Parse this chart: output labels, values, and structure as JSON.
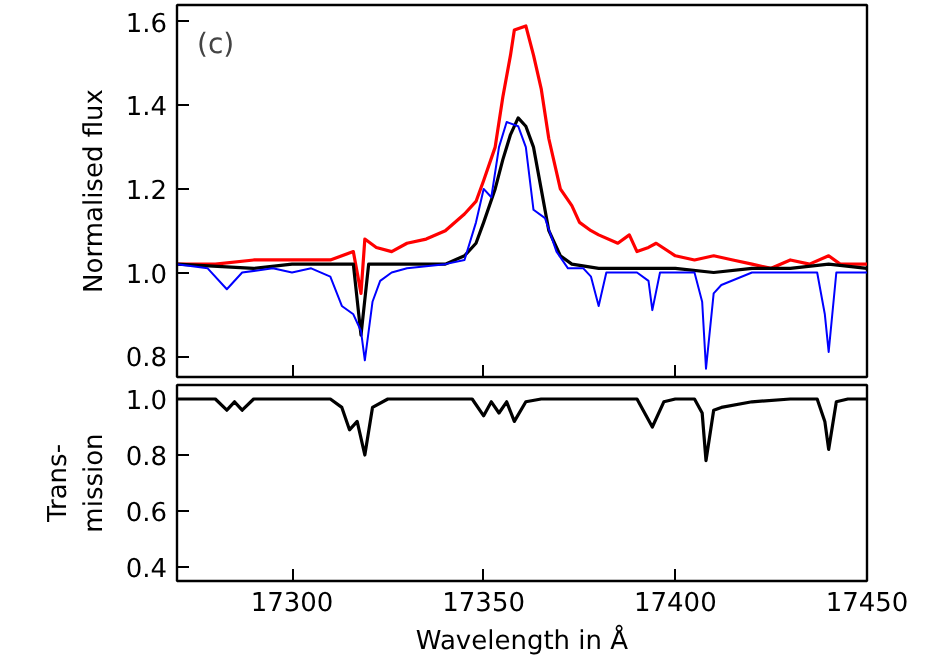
{
  "chart_data": [
    {
      "type": "line",
      "ylabel": "Normalised flux",
      "annotations": [
        "(c)"
      ],
      "xlim": [
        17270,
        17450
      ],
      "ylim": [
        0.75,
        1.64
      ],
      "yticks": [
        {
          "value": 0.8,
          "label": "0.8"
        },
        {
          "value": 1.0,
          "label": "1.0"
        },
        {
          "value": 1.2,
          "label": "1.2"
        },
        {
          "value": 1.4,
          "label": "1.4"
        },
        {
          "value": 1.6,
          "label": "1.6"
        }
      ],
      "tick_labels": "y",
      "grid": false,
      "series": [
        {
          "color": "#ff0000",
          "x": [
            17270,
            17280,
            17290,
            17300,
            17310,
            17316,
            17318,
            17319,
            17322,
            17326,
            17330,
            17335,
            17340,
            17345,
            17348,
            17350,
            17353,
            17355,
            17357,
            17358,
            17361,
            17363,
            17365,
            17367,
            17370,
            17373,
            17375,
            17378,
            17380,
            17385,
            17388,
            17390,
            17393,
            17395,
            17400,
            17405,
            17410,
            17415,
            17420,
            17425,
            17430,
            17435,
            17440,
            17443,
            17446,
            17450
          ],
          "values": [
            1.02,
            1.02,
            1.03,
            1.03,
            1.03,
            1.05,
            0.95,
            1.08,
            1.06,
            1.05,
            1.07,
            1.08,
            1.1,
            1.14,
            1.17,
            1.22,
            1.3,
            1.42,
            1.52,
            1.58,
            1.59,
            1.52,
            1.44,
            1.32,
            1.2,
            1.16,
            1.12,
            1.1,
            1.09,
            1.07,
            1.09,
            1.05,
            1.06,
            1.07,
            1.04,
            1.03,
            1.04,
            1.03,
            1.02,
            1.01,
            1.03,
            1.02,
            1.04,
            1.02,
            1.02,
            1.02
          ]
        },
        {
          "color": "#000000",
          "x": [
            17270,
            17290,
            17300,
            17310,
            17316,
            17318,
            17320,
            17325,
            17335,
            17340,
            17345,
            17348,
            17350,
            17353,
            17355,
            17357,
            17359,
            17361,
            17363,
            17365,
            17367,
            17370,
            17373,
            17380,
            17390,
            17400,
            17410,
            17420,
            17430,
            17440,
            17450
          ],
          "values": [
            1.02,
            1.01,
            1.02,
            1.02,
            1.02,
            0.85,
            1.02,
            1.02,
            1.02,
            1.02,
            1.04,
            1.07,
            1.12,
            1.2,
            1.27,
            1.33,
            1.37,
            1.35,
            1.3,
            1.2,
            1.1,
            1.04,
            1.02,
            1.01,
            1.01,
            1.01,
            1.0,
            1.01,
            1.01,
            1.02,
            1.01
          ]
        },
        {
          "color": "#0000ff",
          "x": [
            17270,
            17278,
            17283,
            17287,
            17295,
            17300,
            17305,
            17310,
            17313,
            17316,
            17318,
            17319,
            17321,
            17323,
            17326,
            17330,
            17340,
            17345,
            17348,
            17350,
            17352,
            17354,
            17356,
            17359,
            17361,
            17363,
            17366,
            17369,
            17372,
            17376,
            17378,
            17380,
            17382,
            17390,
            17393,
            17394,
            17396,
            17400,
            17405,
            17407,
            17408,
            17410,
            17412,
            17420,
            17430,
            17437,
            17439,
            17440,
            17442,
            17445,
            17450
          ],
          "values": [
            1.02,
            1.01,
            0.96,
            1.0,
            1.01,
            1.0,
            1.01,
            0.99,
            0.92,
            0.9,
            0.86,
            0.79,
            0.93,
            0.98,
            1.0,
            1.01,
            1.02,
            1.03,
            1.12,
            1.2,
            1.18,
            1.3,
            1.36,
            1.35,
            1.3,
            1.15,
            1.13,
            1.05,
            1.01,
            1.01,
            0.99,
            0.92,
            1.0,
            1.0,
            0.98,
            0.91,
            1.0,
            1.0,
            1.0,
            0.93,
            0.77,
            0.95,
            0.97,
            1.0,
            1.0,
            1.0,
            0.9,
            0.81,
            1.0,
            1.0,
            1.0
          ]
        }
      ]
    },
    {
      "type": "line",
      "xlabel": "Wavelength in Å",
      "ylabel": "Trans-\nmission",
      "xlim": [
        17270,
        17450
      ],
      "ylim": [
        0.35,
        1.05
      ],
      "xticks": [
        17300,
        17350,
        17400,
        17450
      ],
      "yticks": [
        {
          "value": 0.4,
          "label": "0.4"
        },
        {
          "value": 0.6,
          "label": "0.6"
        },
        {
          "value": 0.8,
          "label": "0.8"
        },
        {
          "value": 1.0,
          "label": "1.0"
        }
      ],
      "grid": false,
      "series": [
        {
          "color": "#000000",
          "x": [
            17270,
            17280,
            17283,
            17285,
            17287,
            17290,
            17300,
            17310,
            17313,
            17315,
            17317,
            17319,
            17321,
            17325,
            17340,
            17347,
            17350,
            17352,
            17354,
            17356,
            17358,
            17361,
            17365,
            17380,
            17390,
            17394,
            17397,
            17400,
            17405,
            17407,
            17408,
            17410,
            17412,
            17420,
            17430,
            17437,
            17439,
            17440,
            17442,
            17445,
            17450
          ],
          "values": [
            1.0,
            1.0,
            0.96,
            0.99,
            0.96,
            1.0,
            1.0,
            1.0,
            0.97,
            0.89,
            0.92,
            0.8,
            0.97,
            1.0,
            1.0,
            1.0,
            0.94,
            0.99,
            0.95,
            0.99,
            0.92,
            0.99,
            1.0,
            1.0,
            1.0,
            0.9,
            0.99,
            1.0,
            1.0,
            0.95,
            0.78,
            0.96,
            0.97,
            0.99,
            1.0,
            1.0,
            0.92,
            0.82,
            0.99,
            1.0,
            1.0
          ]
        }
      ]
    }
  ]
}
